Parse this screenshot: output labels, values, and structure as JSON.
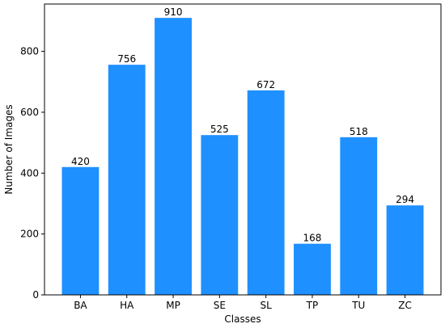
{
  "chart_data": {
    "type": "bar",
    "x_label": "Classes",
    "y_label": "Number of Images",
    "categories": [
      "BA",
      "HA",
      "MP",
      "SE",
      "SL",
      "TP",
      "TU",
      "ZC"
    ],
    "values": [
      420,
      756,
      910,
      525,
      672,
      168,
      518,
      294
    ],
    "color": "#1e90ff",
    "ylim": [
      0,
      955.5
    ],
    "yticks": [
      0,
      200,
      400,
      600,
      800
    ],
    "grid": false
  }
}
